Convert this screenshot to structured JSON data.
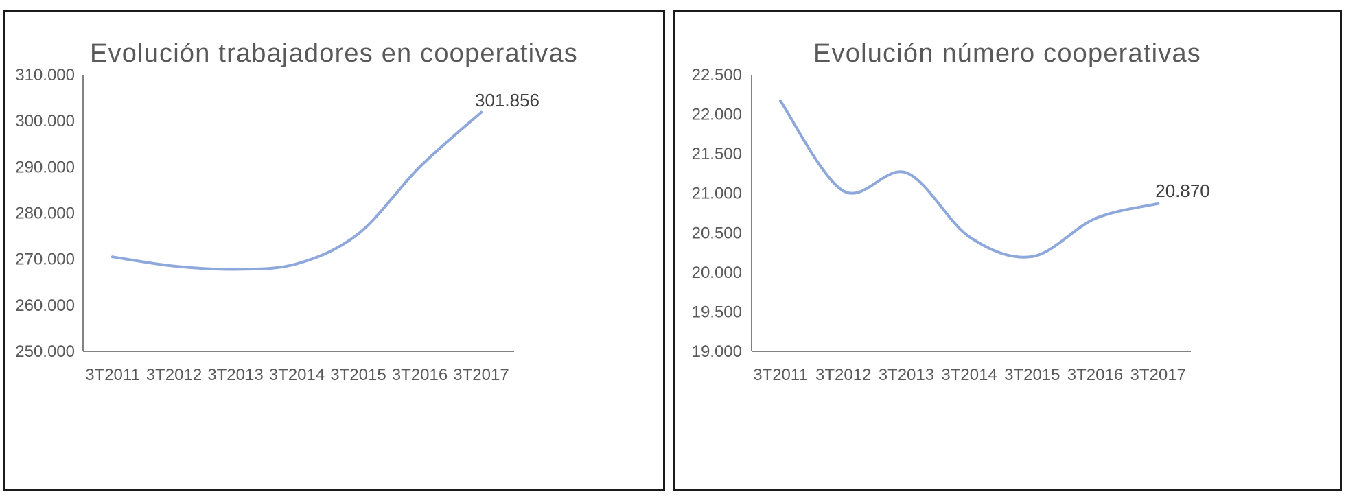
{
  "chart_data": [
    {
      "type": "line",
      "title": "Evolución trabajadores en cooperativas",
      "xlabel": "",
      "ylabel": "",
      "categories": [
        "3T2011",
        "3T2012",
        "3T2013",
        "3T2014",
        "3T2015",
        "3T2016",
        "3T2017"
      ],
      "series": [
        {
          "values": [
            270500,
            268500,
            267800,
            269000,
            275500,
            290000,
            301856
          ]
        }
      ],
      "ylim": [
        250000,
        310000
      ],
      "yticks": [
        250000,
        260000,
        270000,
        280000,
        290000,
        300000,
        310000
      ],
      "ytick_labels": [
        "250.000",
        "260.000",
        "270.000",
        "280.000",
        "290.000",
        "300.000",
        "310.000"
      ],
      "last_point_label": "301.856",
      "grid": false,
      "legend": "none",
      "line_color": "#8ea8db"
    },
    {
      "type": "line",
      "title": "Evolución número cooperativas",
      "xlabel": "",
      "ylabel": "",
      "categories": [
        "3T2011",
        "3T2012",
        "3T2013",
        "3T2014",
        "3T2015",
        "3T2016",
        "3T2017"
      ],
      "series": [
        {
          "values": [
            22170,
            21030,
            21260,
            20450,
            20200,
            20680,
            20870
          ]
        }
      ],
      "ylim": [
        19000,
        22500
      ],
      "yticks": [
        19000,
        19500,
        20000,
        20500,
        21000,
        21500,
        22000,
        22500
      ],
      "ytick_labels": [
        "19.000",
        "19.500",
        "20.000",
        "20.500",
        "21.000",
        "21.500",
        "22.000",
        "22.500"
      ],
      "last_point_label": "20.870",
      "grid": false,
      "legend": "none",
      "line_color": "#8ea8db"
    }
  ]
}
